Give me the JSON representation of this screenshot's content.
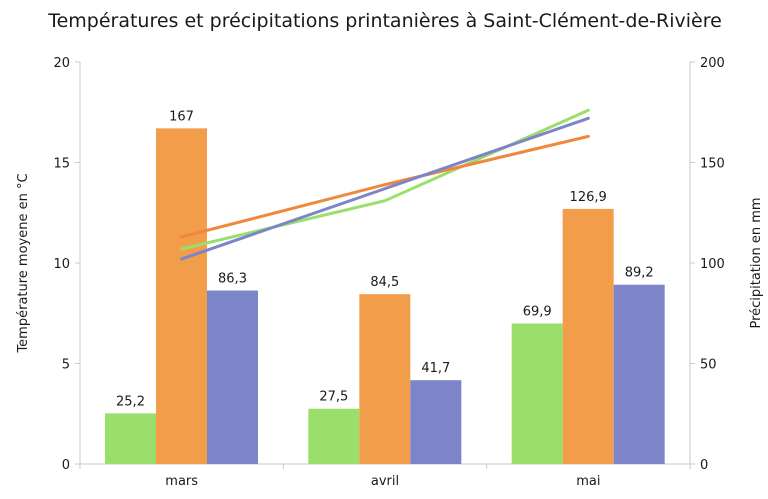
{
  "chart_data": {
    "type": "bar",
    "title": "Températures et précipitations printanières à Saint-Clément-de-Rivière",
    "categories": [
      "mars",
      "avril",
      "mai"
    ],
    "ylabel": "Température moyene en °C",
    "y2label": "Précipitation en mm",
    "ylim": [
      0,
      20
    ],
    "y2lim": [
      0,
      200
    ],
    "yticks": [
      "0",
      "5",
      "10",
      "15",
      "20"
    ],
    "y2ticks": [
      "0",
      "50",
      "100",
      "150",
      "200"
    ],
    "grid": false,
    "legend": "none",
    "bar_series": [
      {
        "color": "#9ade6b",
        "axis": "right",
        "values": [
          25.2,
          27.5,
          69.9
        ],
        "labels": [
          "25,2",
          "27,5",
          "69,9"
        ]
      },
      {
        "color": "#f29d4a",
        "axis": "right",
        "values": [
          167,
          84.5,
          126.9
        ],
        "labels": [
          "167",
          "84,5",
          "126,9"
        ]
      },
      {
        "color": "#7b85c8",
        "axis": "right",
        "values": [
          86.3,
          41.7,
          89.2
        ],
        "labels": [
          "86,3",
          "41,7",
          "89,2"
        ]
      }
    ],
    "line_series": [
      {
        "color": "#9ade6b",
        "axis": "left",
        "values": [
          10.7,
          13.1,
          17.6
        ]
      },
      {
        "color": "#f0883c",
        "axis": "left",
        "values": [
          11.3,
          13.9,
          16.3
        ]
      },
      {
        "color": "#7b85c8",
        "axis": "left",
        "values": [
          10.2,
          13.7,
          17.2
        ]
      }
    ]
  }
}
